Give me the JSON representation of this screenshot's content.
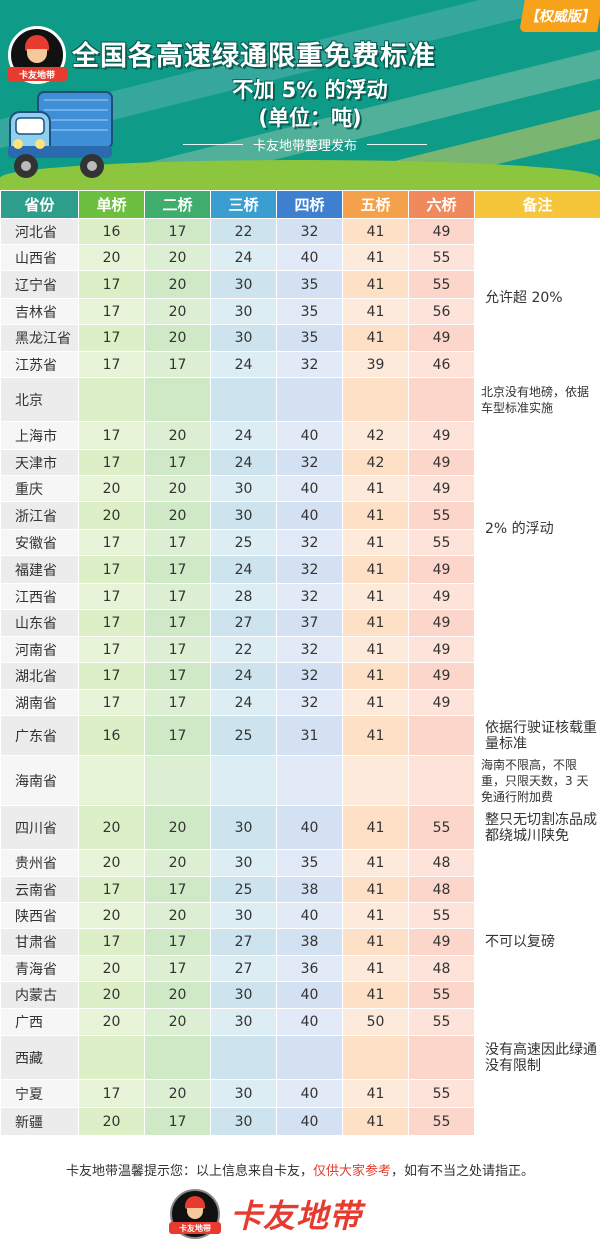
{
  "header": {
    "corner_badge": "【权威版】",
    "logo_text": "卡友地带",
    "title": "全国各高速绿通限重免费标准",
    "subtitle_1": "不加 5% 的浮动",
    "subtitle_2": "(单位：吨)",
    "publisher": "卡友地带整理发布"
  },
  "colors": {
    "header_bg": "#0e9b88",
    "col_province": "#2e9e8c",
    "col_1": "#6cbf3f",
    "col_2": "#3fae6c",
    "col_3": "#3b9ed0",
    "col_4": "#3f7fd0",
    "col_5": "#f5a04a",
    "col_6": "#f08a5d",
    "col_note": "#f5c53a",
    "brand_red": "#e63b2e"
  },
  "table": {
    "headers": [
      "省份",
      "单桥",
      "二桥",
      "三桥",
      "四桥",
      "五桥",
      "六桥",
      "备注"
    ],
    "rows": [
      {
        "p": "河北省",
        "v": [
          "16",
          "17",
          "22",
          "32",
          "41",
          "49"
        ]
      },
      {
        "p": "山西省",
        "v": [
          "20",
          "20",
          "24",
          "40",
          "41",
          "55"
        ]
      },
      {
        "p": "辽宁省",
        "v": [
          "17",
          "20",
          "30",
          "35",
          "41",
          "55"
        ]
      },
      {
        "p": "吉林省",
        "v": [
          "17",
          "20",
          "30",
          "35",
          "41",
          "56"
        ]
      },
      {
        "p": "黑龙江省",
        "v": [
          "17",
          "20",
          "30",
          "35",
          "41",
          "49"
        ]
      },
      {
        "p": "江苏省",
        "v": [
          "17",
          "17",
          "24",
          "32",
          "39",
          "46"
        ]
      },
      {
        "p": "北京",
        "v": [
          "",
          "",
          "",
          "",
          "",
          ""
        ]
      },
      {
        "p": "上海市",
        "v": [
          "17",
          "20",
          "24",
          "40",
          "42",
          "49"
        ]
      },
      {
        "p": "天津市",
        "v": [
          "17",
          "17",
          "24",
          "32",
          "42",
          "49"
        ]
      },
      {
        "p": "重庆",
        "v": [
          "20",
          "20",
          "30",
          "40",
          "41",
          "49"
        ]
      },
      {
        "p": "浙江省",
        "v": [
          "20",
          "20",
          "30",
          "40",
          "41",
          "55"
        ]
      },
      {
        "p": "安徽省",
        "v": [
          "17",
          "17",
          "25",
          "32",
          "41",
          "55"
        ]
      },
      {
        "p": "福建省",
        "v": [
          "17",
          "17",
          "24",
          "32",
          "41",
          "49"
        ]
      },
      {
        "p": "江西省",
        "v": [
          "17",
          "17",
          "28",
          "32",
          "41",
          "49"
        ]
      },
      {
        "p": "山东省",
        "v": [
          "17",
          "17",
          "27",
          "37",
          "41",
          "49"
        ]
      },
      {
        "p": "河南省",
        "v": [
          "17",
          "17",
          "22",
          "32",
          "41",
          "49"
        ]
      },
      {
        "p": "湖北省",
        "v": [
          "17",
          "17",
          "24",
          "32",
          "41",
          "49"
        ]
      },
      {
        "p": "湖南省",
        "v": [
          "17",
          "17",
          "24",
          "32",
          "41",
          "49"
        ]
      },
      {
        "p": "广东省",
        "v": [
          "16",
          "17",
          "25",
          "31",
          "41",
          ""
        ]
      },
      {
        "p": "海南省",
        "v": [
          "",
          "",
          "",
          "",
          "",
          ""
        ]
      },
      {
        "p": "四川省",
        "v": [
          "20",
          "20",
          "30",
          "40",
          "41",
          "55"
        ]
      },
      {
        "p": "贵州省",
        "v": [
          "20",
          "20",
          "30",
          "35",
          "41",
          "48"
        ]
      },
      {
        "p": "云南省",
        "v": [
          "17",
          "17",
          "25",
          "38",
          "41",
          "48"
        ]
      },
      {
        "p": "陕西省",
        "v": [
          "20",
          "20",
          "30",
          "40",
          "41",
          "55"
        ]
      },
      {
        "p": "甘肃省",
        "v": [
          "17",
          "17",
          "27",
          "38",
          "41",
          "49"
        ]
      },
      {
        "p": "青海省",
        "v": [
          "20",
          "17",
          "27",
          "36",
          "41",
          "48"
        ]
      },
      {
        "p": "内蒙古",
        "v": [
          "20",
          "20",
          "30",
          "40",
          "41",
          "55"
        ]
      },
      {
        "p": "广西",
        "v": [
          "20",
          "20",
          "30",
          "40",
          "50",
          "55"
        ]
      },
      {
        "p": "西藏",
        "v": [
          "",
          "",
          "",
          "",
          "",
          ""
        ]
      },
      {
        "p": "宁夏",
        "v": [
          "17",
          "20",
          "30",
          "40",
          "41",
          "55"
        ]
      },
      {
        "p": "新疆",
        "v": [
          "20",
          "17",
          "30",
          "40",
          "41",
          "55"
        ]
      }
    ],
    "notes": {
      "n1": "允许超 20%",
      "n2": "北京没有地磅，依据车型标准实施",
      "n3": "2% 的浮动",
      "n4": "依据行驶证核载重量标准",
      "n5": "海南不限高，不限重，只限天数，3 天免通行附加费",
      "n6": "整只无切割冻品成都绕城川陕免",
      "n7": "不可以复磅",
      "n8": "没有高速因此绿通没有限制"
    }
  },
  "footer": {
    "note_prefix": "卡友地带温馨提示您：以上信息来自卡友，",
    "note_red": "仅供大家参考",
    "note_suffix": "，如有不当之处请指正。",
    "brand": "卡友地带",
    "logo_text": "卡友地带"
  }
}
